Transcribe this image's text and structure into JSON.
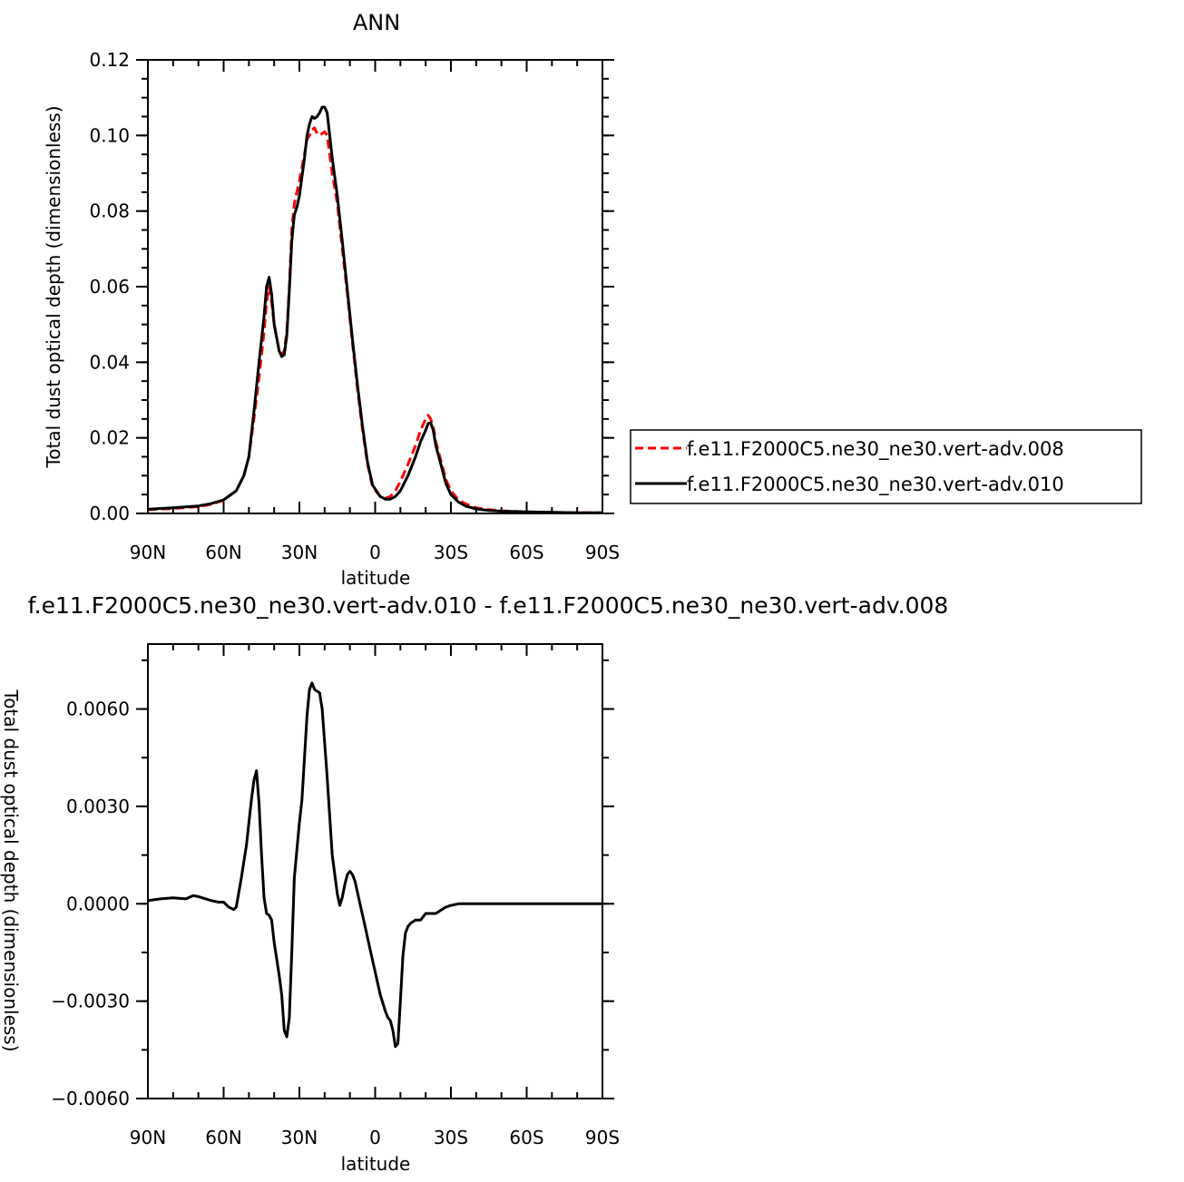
{
  "chart_data": [
    {
      "type": "line",
      "title": "ANN",
      "xlabel": "latitude",
      "ylabel": "Total dust optical depth (dimensionless)",
      "xlim": [
        90,
        -90
      ],
      "ylim": [
        0,
        0.12
      ],
      "x_ticks": [
        90,
        60,
        30,
        0,
        -30,
        -60,
        -90
      ],
      "x_tick_labels": [
        "90N",
        "60N",
        "30N",
        "0",
        "30S",
        "60S",
        "90S"
      ],
      "y_ticks": [
        0,
        0.02,
        0.04,
        0.06,
        0.08,
        0.1,
        0.12
      ],
      "y_tick_labels": [
        "0.00",
        "0.02",
        "0.04",
        "0.06",
        "0.08",
        "0.10",
        "0.12"
      ],
      "grid": false,
      "legend_position": "right",
      "series": [
        {
          "name": "f.e11.F2000C5.ne30_ne30.vert-adv.008",
          "color": "#ff0000",
          "dash": "dashed",
          "points": [
            [
              90,
              0.001
            ],
            [
              80,
              0.0013
            ],
            [
              70,
              0.0018
            ],
            [
              65,
              0.0024
            ],
            [
              60,
              0.0035
            ],
            [
              55,
              0.006
            ],
            [
              52,
              0.01
            ],
            [
              50,
              0.015
            ],
            [
              48,
              0.025
            ],
            [
              46,
              0.036
            ],
            [
              44,
              0.048
            ],
            [
              43,
              0.056
            ],
            [
              42,
              0.06
            ],
            [
              41,
              0.056
            ],
            [
              40,
              0.05
            ],
            [
              38,
              0.043
            ],
            [
              37,
              0.042
            ],
            [
              36,
              0.043
            ],
            [
              35,
              0.048
            ],
            [
              34,
              0.06
            ],
            [
              33,
              0.075
            ],
            [
              32,
              0.082
            ],
            [
              31,
              0.085
            ],
            [
              30,
              0.088
            ],
            [
              28,
              0.095
            ],
            [
              27,
              0.099
            ],
            [
              26,
              0.1
            ],
            [
              25,
              0.1015
            ],
            [
              24,
              0.102
            ],
            [
              23,
              0.1005
            ],
            [
              22,
              0.1
            ],
            [
              21,
              0.1005
            ],
            [
              20,
              0.101
            ],
            [
              19,
              0.1
            ],
            [
              18,
              0.095
            ],
            [
              17,
              0.09
            ],
            [
              15,
              0.082
            ],
            [
              13,
              0.07
            ],
            [
              11,
              0.058
            ],
            [
              9,
              0.045
            ],
            [
              7,
              0.033
            ],
            [
              5,
              0.022
            ],
            [
              3,
              0.013
            ],
            [
              1,
              0.007
            ],
            [
              -2,
              0.0045
            ],
            [
              -4,
              0.004
            ],
            [
              -6,
              0.0045
            ],
            [
              -8,
              0.006
            ],
            [
              -10,
              0.0085
            ],
            [
              -13,
              0.013
            ],
            [
              -16,
              0.018
            ],
            [
              -18,
              0.022
            ],
            [
              -20,
              0.025
            ],
            [
              -21,
              0.026
            ],
            [
              -22,
              0.025
            ],
            [
              -23,
              0.023
            ],
            [
              -24,
              0.019
            ],
            [
              -26,
              0.014
            ],
            [
              -28,
              0.009
            ],
            [
              -30,
              0.006
            ],
            [
              -33,
              0.0035
            ],
            [
              -36,
              0.0025
            ],
            [
              -40,
              0.0015
            ],
            [
              -45,
              0.001
            ],
            [
              -50,
              0.0007
            ],
            [
              -60,
              0.0004
            ],
            [
              -70,
              0.0003
            ],
            [
              -80,
              0.0002
            ],
            [
              -90,
              0.0002
            ]
          ]
        },
        {
          "name": "f.e11.F2000C5.ne30_ne30.vert-adv.010",
          "color": "#000000",
          "dash": "solid",
          "points": [
            [
              90,
              0.0011
            ],
            [
              80,
              0.0015
            ],
            [
              70,
              0.002
            ],
            [
              65,
              0.0026
            ],
            [
              60,
              0.0036
            ],
            [
              55,
              0.006
            ],
            [
              52,
              0.01
            ],
            [
              50,
              0.015
            ],
            [
              48,
              0.027
            ],
            [
              46,
              0.04
            ],
            [
              44,
              0.052
            ],
            [
              43,
              0.06
            ],
            [
              42,
              0.0625
            ],
            [
              41,
              0.058
            ],
            [
              40,
              0.05
            ],
            [
              38,
              0.043
            ],
            [
              37,
              0.0415
            ],
            [
              36,
              0.042
            ],
            [
              35,
              0.047
            ],
            [
              34,
              0.059
            ],
            [
              33,
              0.072
            ],
            [
              32,
              0.079
            ],
            [
              31,
              0.081
            ],
            [
              30,
              0.084
            ],
            [
              28,
              0.094
            ],
            [
              27,
              0.1
            ],
            [
              26,
              0.103
            ],
            [
              25,
              0.105
            ],
            [
              24,
              0.1045
            ],
            [
              23,
              0.105
            ],
            [
              22,
              0.106
            ],
            [
              21,
              0.1075
            ],
            [
              20,
              0.1075
            ],
            [
              19,
              0.106
            ],
            [
              18,
              0.1
            ],
            [
              17,
              0.094
            ],
            [
              15,
              0.084
            ],
            [
              13,
              0.072
            ],
            [
              11,
              0.059
            ],
            [
              9,
              0.046
            ],
            [
              7,
              0.034
            ],
            [
              5,
              0.023
            ],
            [
              3,
              0.0135
            ],
            [
              1,
              0.0075
            ],
            [
              -2,
              0.0045
            ],
            [
              -4,
              0.0038
            ],
            [
              -6,
              0.0038
            ],
            [
              -8,
              0.0045
            ],
            [
              -10,
              0.006
            ],
            [
              -13,
              0.01
            ],
            [
              -16,
              0.015
            ],
            [
              -18,
              0.019
            ],
            [
              -20,
              0.022
            ],
            [
              -21,
              0.0238
            ],
            [
              -22,
              0.024
            ],
            [
              -23,
              0.022
            ],
            [
              -24,
              0.018
            ],
            [
              -26,
              0.013
            ],
            [
              -28,
              0.008
            ],
            [
              -30,
              0.005
            ],
            [
              -33,
              0.003
            ],
            [
              -36,
              0.0019
            ],
            [
              -40,
              0.0012
            ],
            [
              -45,
              0.0008
            ],
            [
              -50,
              0.0006
            ],
            [
              -60,
              0.0004
            ],
            [
              -70,
              0.0003
            ],
            [
              -80,
              0.0002
            ],
            [
              -90,
              0.0002
            ]
          ]
        }
      ]
    },
    {
      "type": "line",
      "title": "f.e11.F2000C5.ne30_ne30.vert-adv.010 - f.e11.F2000C5.ne30_ne30.vert-adv.008",
      "xlabel": "latitude",
      "ylabel": "Total dust optical depth (dimensionless)",
      "xlim": [
        90,
        -90
      ],
      "ylim": [
        -0.006,
        0.008
      ],
      "x_ticks": [
        90,
        60,
        30,
        0,
        -30,
        -60,
        -90
      ],
      "x_tick_labels": [
        "90N",
        "60N",
        "30N",
        "0",
        "30S",
        "60S",
        "90S"
      ],
      "y_ticks": [
        -0.006,
        -0.003,
        0,
        0.003,
        0.006
      ],
      "y_tick_labels": [
        "−0.0060",
        "−0.0030",
        "0.0000",
        "0.0030",
        "0.0060"
      ],
      "grid": false,
      "series": [
        {
          "color": "#000000",
          "dash": "solid",
          "points": [
            [
              90,
              0.0001
            ],
            [
              85,
              0.00015
            ],
            [
              80,
              0.00018
            ],
            [
              75,
              0.00015
            ],
            [
              72,
              0.00025
            ],
            [
              70,
              0.00022
            ],
            [
              65,
              0.0001
            ],
            [
              62,
              5e-05
            ],
            [
              60,
              5e-05
            ],
            [
              58,
              -0.0001
            ],
            [
              56,
              -0.00018
            ],
            [
              55,
              -0.0001
            ],
            [
              53,
              0.0008
            ],
            [
              51,
              0.0018
            ],
            [
              49,
              0.0032
            ],
            [
              48,
              0.0038
            ],
            [
              47,
              0.0041
            ],
            [
              46,
              0.0031
            ],
            [
              45,
              0.0015
            ],
            [
              44,
              0.0002
            ],
            [
              43,
              -0.0003
            ],
            [
              42,
              -0.00035
            ],
            [
              41,
              -0.0005
            ],
            [
              40,
              -0.0012
            ],
            [
              38,
              -0.0022
            ],
            [
              37,
              -0.0028
            ],
            [
              36,
              -0.0039
            ],
            [
              35,
              -0.0041
            ],
            [
              34,
              -0.0035
            ],
            [
              33,
              -0.0015
            ],
            [
              32,
              0.0008
            ],
            [
              30,
              0.0025
            ],
            [
              29,
              0.0032
            ],
            [
              28,
              0.0045
            ],
            [
              27,
              0.0058
            ],
            [
              26,
              0.0066
            ],
            [
              25,
              0.0068
            ],
            [
              24,
              0.0066
            ],
            [
              22,
              0.0065
            ],
            [
              21,
              0.006
            ],
            [
              19,
              0.0039
            ],
            [
              17,
              0.0015
            ],
            [
              15,
              0.0003
            ],
            [
              14,
              -5e-05
            ],
            [
              13,
              0.0002
            ],
            [
              12,
              0.0006
            ],
            [
              11,
              0.0009
            ],
            [
              10,
              0.001
            ],
            [
              9,
              0.0009
            ],
            [
              8,
              0.0007
            ],
            [
              6,
              0.0
            ],
            [
              4,
              -0.0007
            ],
            [
              2,
              -0.0014
            ],
            [
              0,
              -0.0021
            ],
            [
              -2,
              -0.0028
            ],
            [
              -4,
              -0.0033
            ],
            [
              -5,
              -0.0035
            ],
            [
              -6,
              -0.0036
            ],
            [
              -7,
              -0.0039
            ],
            [
              -8,
              -0.0044
            ],
            [
              -9,
              -0.0043
            ],
            [
              -10,
              -0.003
            ],
            [
              -11,
              -0.0016
            ],
            [
              -12,
              -0.0009
            ],
            [
              -13,
              -0.0007
            ],
            [
              -14,
              -0.0006
            ],
            [
              -16,
              -0.0005
            ],
            [
              -18,
              -0.0005
            ],
            [
              -20,
              -0.0003
            ],
            [
              -22,
              -0.0003
            ],
            [
              -24,
              -0.0003
            ],
            [
              -26,
              -0.0002
            ],
            [
              -28,
              -0.0001
            ],
            [
              -30,
              -5e-05
            ],
            [
              -33,
              0
            ],
            [
              -40,
              0
            ],
            [
              -50,
              0
            ],
            [
              -60,
              0
            ],
            [
              -70,
              0
            ],
            [
              -80,
              0
            ],
            [
              -90,
              0
            ]
          ]
        }
      ]
    }
  ]
}
